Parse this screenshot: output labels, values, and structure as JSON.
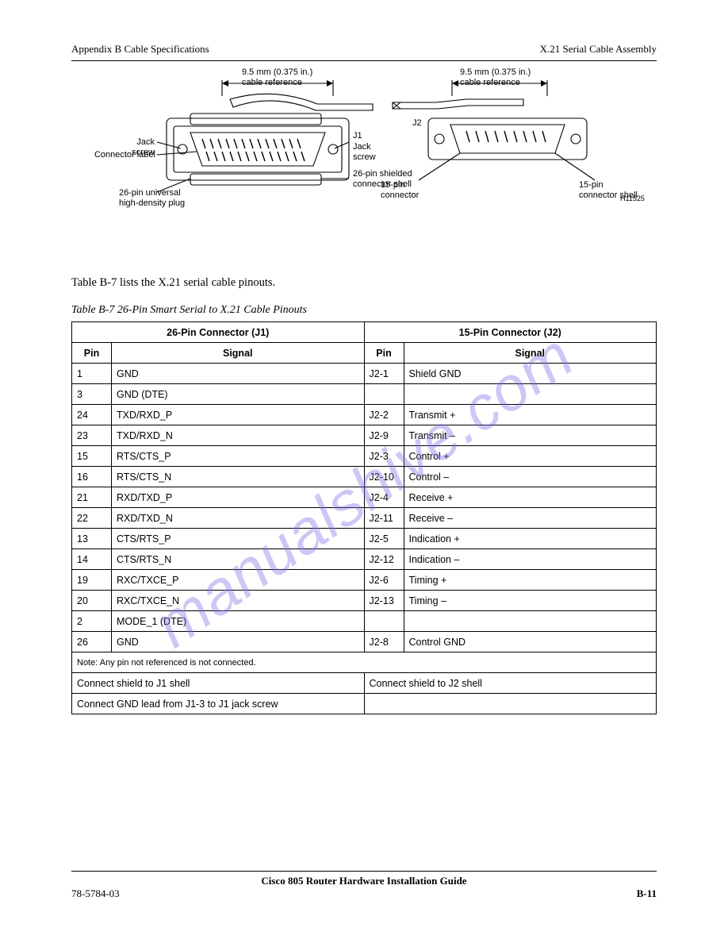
{
  "header": {
    "left": "Appendix B      Cable Specifications",
    "right": "X.21 Serial Cable Assembly"
  },
  "figure": {
    "j1": {
      "cable_exit": "9.5 mm (0.375 in.)\ncable reference",
      "label": "Connector label",
      "j1": "J1",
      "shell": "26-pin shielded\nconnector shell",
      "plug": "26-pin universal\nhigh-density plug"
    },
    "j2": {
      "cable_exit": "9.5 mm (0.375 in.)\ncable reference",
      "j2": "J2",
      "conn": "15-pin\nconnector",
      "shell": "15-pin\nconnector shell"
    },
    "h_id": "H11525"
  },
  "body": "Table B-7 lists the X.21 serial cable pinouts.",
  "caption": "Table B-7   26-Pin Smart Serial to X.21 Cable Pinouts",
  "table": {
    "col1_header": "26-Pin Connector (J1)",
    "col2_header": "15-Pin Connector (J2)",
    "sub_headers": [
      "Pin",
      "Signal",
      "Pin",
      "Signal"
    ],
    "rows": [
      [
        "1",
        "GND",
        "J2-1",
        "Shield GND"
      ],
      [
        "3",
        "GND (DTE)",
        "",
        ""
      ],
      [
        "24",
        "TXD/RXD_P",
        "J2-2",
        "Transmit +"
      ],
      [
        "23",
        "TXD/RXD_N",
        "J2-9",
        "Transmit –"
      ],
      [
        "15",
        "RTS/CTS_P",
        "J2-3",
        "Control +"
      ],
      [
        "16",
        "RTS/CTS_N",
        "J2-10",
        "Control –"
      ],
      [
        "21",
        "RXD/TXD_P",
        "J2-4",
        "Receive +"
      ],
      [
        "22",
        "RXD/TXD_N",
        "J2-11",
        "Receive –"
      ],
      [
        "13",
        "CTS/RTS_P",
        "J2-5",
        "Indication +"
      ],
      [
        "14",
        "CTS/RTS_N",
        "J2-12",
        "Indication –"
      ],
      [
        "19",
        "RXC/TXCE_P",
        "J2-6",
        "Timing +"
      ],
      [
        "20",
        "RXC/TXCE_N",
        "J2-13",
        "Timing –"
      ],
      [
        "2",
        "MODE_1 (DTE)",
        "",
        ""
      ],
      [
        "26",
        "GND",
        "J2-8",
        "Control GND"
      ]
    ],
    "note": "Note: Any pin not referenced is not connected.",
    "shield_rows": [
      [
        "Connect shield to J1 shell",
        "Connect shield to J2 shell"
      ],
      [
        "Connect GND lead from J1-3 to J1 jack screw",
        ""
      ]
    ]
  },
  "footer": {
    "title": "Cisco 805 Router Hardware Installation Guide",
    "docnum": "78-5784-03",
    "pagenum": "B-11"
  }
}
